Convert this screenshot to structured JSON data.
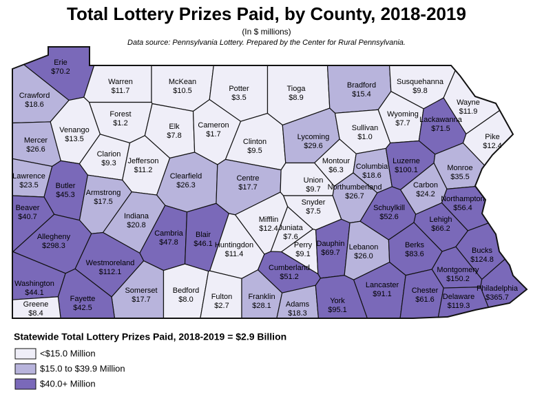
{
  "title": "Total Lottery Prizes Paid, by County, 2018-2019",
  "subtitle": "(In $ millions)",
  "source": "Data source: Pennsylvania Lottery. Prepared by the Center for Rural Pennsylvania.",
  "legend": {
    "title": "Statewide Total Lottery Prizes Paid, 2018-2019 = $2.9 Billion",
    "classes": [
      {
        "label": "<$15.0 Million",
        "color": "#efeef8"
      },
      {
        "label": "$15.0 to $39.9 Million",
        "color": "#b8b4dc"
      },
      {
        "label": "$40.0+ Million",
        "color": "#7a69b9"
      }
    ]
  },
  "counties": [
    {
      "name": "Erie",
      "value": "$70.2",
      "color": "#7a69b9"
    },
    {
      "name": "Warren",
      "value": "$11.7",
      "color": "#efeef8"
    },
    {
      "name": "McKean",
      "value": "$10.5",
      "color": "#efeef8"
    },
    {
      "name": "Potter",
      "value": "$3.5",
      "color": "#efeef8"
    },
    {
      "name": "Tioga",
      "value": "$8.9",
      "color": "#efeef8"
    },
    {
      "name": "Bradford",
      "value": "$15.4",
      "color": "#b8b4dc"
    },
    {
      "name": "Susquehanna",
      "value": "$9.8",
      "color": "#efeef8"
    },
    {
      "name": "Wayne",
      "value": "$11.9",
      "color": "#efeef8"
    },
    {
      "name": "Crawford",
      "value": "$18.6",
      "color": "#b8b4dc"
    },
    {
      "name": "Forest",
      "value": "$1.2",
      "color": "#efeef8"
    },
    {
      "name": "Venango",
      "value": "$13.5",
      "color": "#efeef8"
    },
    {
      "name": "Elk",
      "value": "$7.8",
      "color": "#efeef8"
    },
    {
      "name": "Cameron",
      "value": "$1.7",
      "color": "#efeef8"
    },
    {
      "name": "Clinton",
      "value": "$9.5",
      "color": "#efeef8"
    },
    {
      "name": "Lycoming",
      "value": "$29.6",
      "color": "#b8b4dc"
    },
    {
      "name": "Sullivan",
      "value": "$1.0",
      "color": "#efeef8"
    },
    {
      "name": "Wyoming",
      "value": "$7.7",
      "color": "#efeef8"
    },
    {
      "name": "Lackawanna",
      "value": "$71.5",
      "color": "#7a69b9"
    },
    {
      "name": "Pike",
      "value": "$12.4",
      "color": "#efeef8"
    },
    {
      "name": "Mercer",
      "value": "$26.6",
      "color": "#b8b4dc"
    },
    {
      "name": "Clarion",
      "value": "$9.3",
      "color": "#efeef8"
    },
    {
      "name": "Jefferson",
      "value": "$11.2",
      "color": "#efeef8"
    },
    {
      "name": "Clearfield",
      "value": "$26.3",
      "color": "#b8b4dc"
    },
    {
      "name": "Centre",
      "value": "$17.7",
      "color": "#b8b4dc"
    },
    {
      "name": "Montour",
      "value": "$6.3",
      "color": "#efeef8"
    },
    {
      "name": "Columbia",
      "value": "$18.6",
      "color": "#b8b4dc"
    },
    {
      "name": "Luzerne",
      "value": "$100.1",
      "color": "#7a69b9"
    },
    {
      "name": "Monroe",
      "value": "$35.5",
      "color": "#b8b4dc"
    },
    {
      "name": "Lawrence",
      "value": "$23.5",
      "color": "#b8b4dc"
    },
    {
      "name": "Butler",
      "value": "$45.3",
      "color": "#7a69b9"
    },
    {
      "name": "Armstrong",
      "value": "$17.5",
      "color": "#b8b4dc"
    },
    {
      "name": "Union",
      "value": "$9.7",
      "color": "#efeef8"
    },
    {
      "name": "Northumberland",
      "value": "$26.7",
      "color": "#b8b4dc"
    },
    {
      "name": "Carbon",
      "value": "$24.2",
      "color": "#b8b4dc"
    },
    {
      "name": "Beaver",
      "value": "$40.7",
      "color": "#7a69b9"
    },
    {
      "name": "Indiana",
      "value": "$20.8",
      "color": "#b8b4dc"
    },
    {
      "name": "Snyder",
      "value": "$7.5",
      "color": "#efeef8"
    },
    {
      "name": "Mifflin",
      "value": "$12.4",
      "color": "#efeef8"
    },
    {
      "name": "Schuylkill",
      "value": "$52.6",
      "color": "#7a69b9"
    },
    {
      "name": "Northampton",
      "value": "$56.4",
      "color": "#7a69b9"
    },
    {
      "name": "Juniata",
      "value": "$7.6",
      "color": "#efeef8"
    },
    {
      "name": "Lehigh",
      "value": "$66.2",
      "color": "#7a69b9"
    },
    {
      "name": "Allegheny",
      "value": "$298.3",
      "color": "#7a69b9"
    },
    {
      "name": "Cambria",
      "value": "$47.8",
      "color": "#7a69b9"
    },
    {
      "name": "Blair",
      "value": "$46.1",
      "color": "#7a69b9"
    },
    {
      "name": "Huntingdon",
      "value": "$11.4",
      "color": "#efeef8"
    },
    {
      "name": "Perry",
      "value": "$9.1",
      "color": "#efeef8"
    },
    {
      "name": "Dauphin",
      "value": "$69.7",
      "color": "#7a69b9"
    },
    {
      "name": "Lebanon",
      "value": "$26.0",
      "color": "#b8b4dc"
    },
    {
      "name": "Berks",
      "value": "$83.6",
      "color": "#7a69b9"
    },
    {
      "name": "Bucks",
      "value": "$124.8",
      "color": "#7a69b9"
    },
    {
      "name": "Westmoreland",
      "value": "$112.1",
      "color": "#7a69b9"
    },
    {
      "name": "Washington",
      "value": "$44.1",
      "color": "#7a69b9"
    },
    {
      "name": "Cumberland",
      "value": "$51.2",
      "color": "#7a69b9"
    },
    {
      "name": "Montgomery",
      "value": "$150.2",
      "color": "#7a69b9"
    },
    {
      "name": "Somerset",
      "value": "$17.7",
      "color": "#b8b4dc"
    },
    {
      "name": "Bedford",
      "value": "$8.0",
      "color": "#efeef8"
    },
    {
      "name": "Fulton",
      "value": "$2.7",
      "color": "#efeef8"
    },
    {
      "name": "Franklin",
      "value": "$28.1",
      "color": "#b8b4dc"
    },
    {
      "name": "Lancaster",
      "value": "$91.1",
      "color": "#7a69b9"
    },
    {
      "name": "Chester",
      "value": "$61.6",
      "color": "#7a69b9"
    },
    {
      "name": "Delaware",
      "value": "$119.3",
      "color": "#7a69b9"
    },
    {
      "name": "Philadelphia",
      "value": "$365.7",
      "color": "#7a69b9"
    },
    {
      "name": "Fayette",
      "value": "$42.5",
      "color": "#7a69b9"
    },
    {
      "name": "Adams",
      "value": "$18.3",
      "color": "#b8b4dc"
    },
    {
      "name": "York",
      "value": "$95.1",
      "color": "#7a69b9"
    },
    {
      "name": "Greene",
      "value": "$8.4",
      "color": "#efeef8"
    }
  ]
}
